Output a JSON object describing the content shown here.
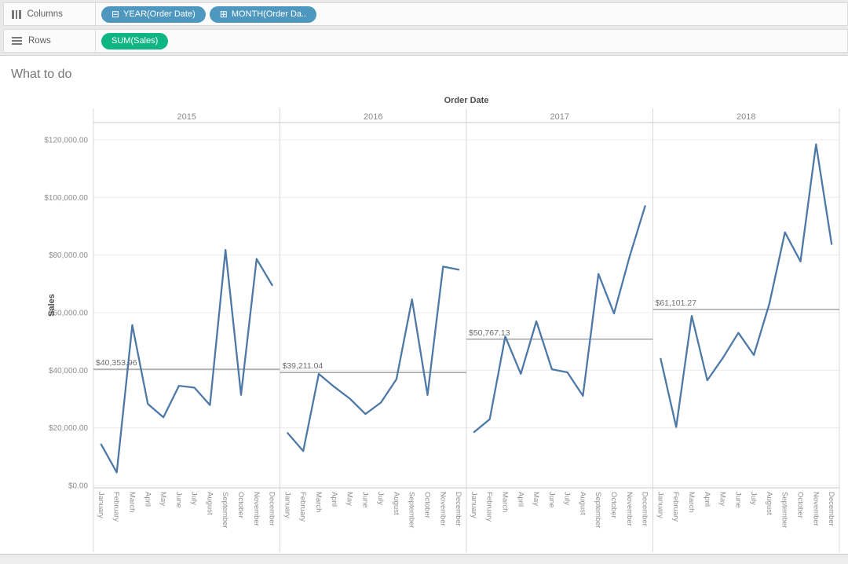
{
  "shelves": {
    "columns": {
      "label": "Columns",
      "pills": [
        {
          "glyph": "⊟",
          "text": "YEAR(Order Date)",
          "color": "#4e97bf"
        },
        {
          "glyph": "⊞",
          "text": "MONTH(Order Da..",
          "color": "#4e97bf"
        }
      ]
    },
    "rows": {
      "label": "Rows",
      "pills": [
        {
          "glyph": "",
          "text": "SUM(Sales)",
          "color": "#10b584"
        }
      ]
    }
  },
  "sheet": {
    "title": "What to do"
  },
  "chart_data": {
    "type": "line",
    "column_header": "Order Date",
    "ylabel": "Sales",
    "grid": true,
    "line_color": "#4e79a7",
    "reference_line_color": "#9c9c9c",
    "ylim": [
      0,
      126000
    ],
    "y_tick_values": [
      0,
      20000,
      40000,
      60000,
      80000,
      100000,
      120000
    ],
    "y_tick_labels": [
      "$0.00",
      "$20,000.00",
      "$40,000.00",
      "$60,000.00",
      "$80,000.00",
      "$100,000.00",
      "$120,000.00"
    ],
    "months": [
      "January",
      "February",
      "March",
      "April",
      "May",
      "June",
      "July",
      "August",
      "September",
      "October",
      "November",
      "December"
    ],
    "series": [
      {
        "year": "2015",
        "values": [
          14236.9,
          4519.89,
          55691.01,
          28295.35,
          23648.29,
          34595.13,
          33946.39,
          27909.47,
          81777.35,
          31453.39,
          78628.72,
          69545.62
        ],
        "avg_value": 40353.96,
        "avg_label": "$40,353.96"
      },
      {
        "year": "2016",
        "values": [
          18174.08,
          11951.41,
          38726.25,
          34195.21,
          30131.69,
          24797.29,
          28765.33,
          36898.33,
          64595.92,
          31404.92,
          75972.56,
          74919.52
        ],
        "avg_value": 39211.04,
        "avg_label": "$39,211.04"
      },
      {
        "year": "2017",
        "values": [
          18542.49,
          22978.82,
          51715.88,
          38750.04,
          56987.73,
          40344.53,
          39261.96,
          31115.37,
          73410.02,
          59687.75,
          79411.97,
          96999.04
        ],
        "avg_value": 50767.13,
        "avg_label": "$50,767.13"
      },
      {
        "year": "2018",
        "values": [
          43971.37,
          20301.13,
          58872.35,
          36521.54,
          44261.11,
          52981.73,
          45264.42,
          63120.89,
          87866.65,
          77776.92,
          118447.83,
          83829.32
        ],
        "avg_value": 61101.27,
        "avg_label": "$61,101.27"
      }
    ]
  }
}
